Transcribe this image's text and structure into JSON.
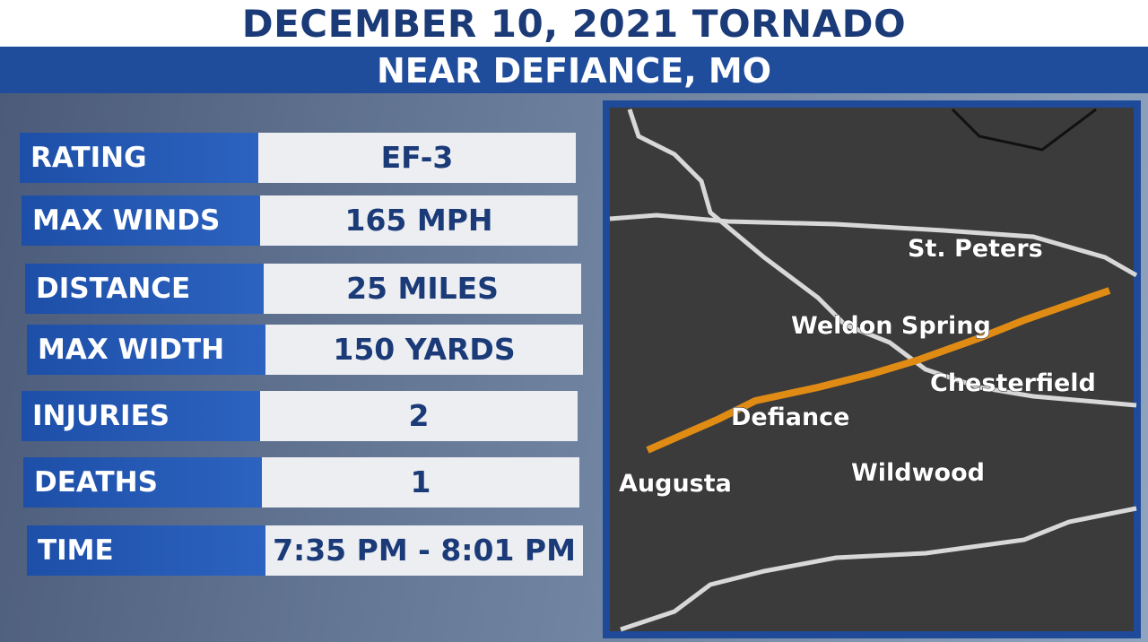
{
  "header": {
    "title": "DECEMBER 10, 2021 TORNADO",
    "subtitle": "NEAR DEFIANCE, MO"
  },
  "table": {
    "rows": [
      [
        "RATING",
        "EF-3"
      ],
      [
        "MAX WINDS",
        "165 MPH"
      ],
      [
        "DISTANCE",
        "25 MILES"
      ],
      [
        "MAX WIDTH",
        "150 YARDS"
      ],
      [
        "INJURIES",
        "2"
      ],
      [
        "DEATHS",
        "1"
      ],
      [
        "TIME",
        "7:35 PM - 8:01 PM"
      ]
    ]
  },
  "map": {
    "labels": [
      "St. Peters",
      "Weldon Spring",
      "Chesterfield",
      "Defiance",
      "Wildwood",
      "Augusta"
    ]
  }
}
